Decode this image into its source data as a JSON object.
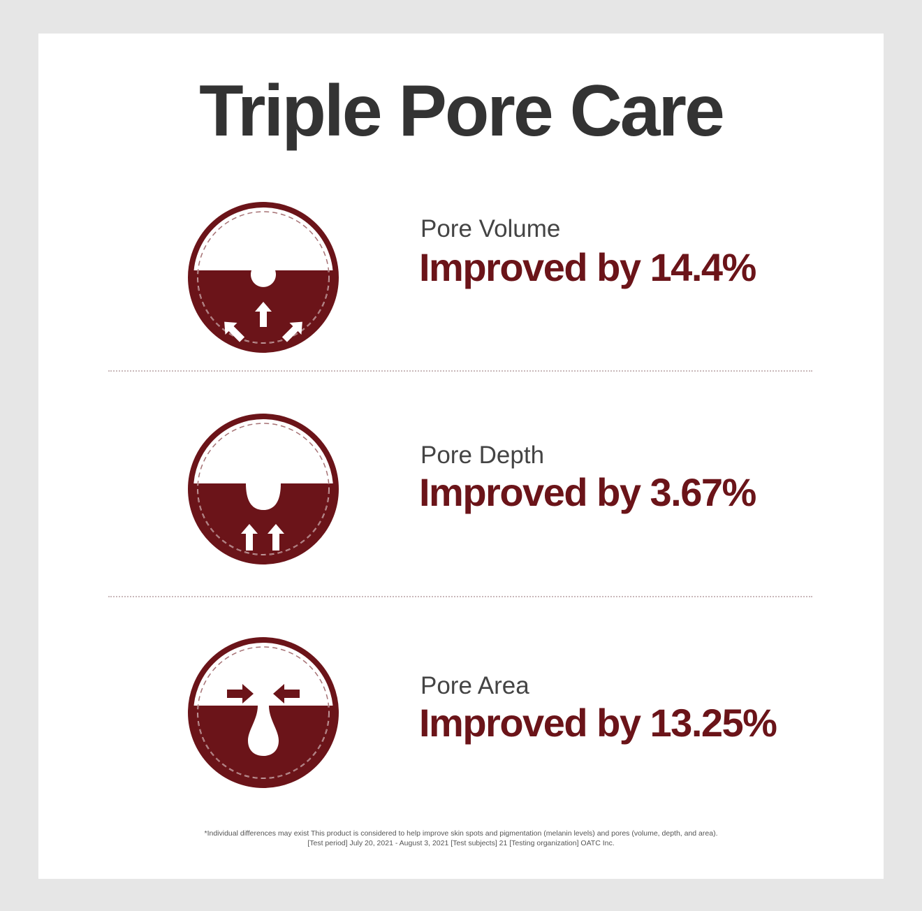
{
  "title": "Triple Pore Care",
  "accent_color": "#6b1419",
  "items": [
    {
      "label": "Pore Volume",
      "value": "Improved by 14.4%",
      "icon": "pore-volume-icon"
    },
    {
      "label": "Pore Depth",
      "value": "Improved by 3.67%",
      "icon": "pore-depth-icon"
    },
    {
      "label": "Pore Area",
      "value": "Improved by 13.25%",
      "icon": "pore-area-icon"
    }
  ],
  "footnote": {
    "line1": "*Individual differences may exist This product is considered to help improve skin spots and pigmentation (melanin levels) and pores (volume, depth, and area).",
    "line2": "[Test period] July 20, 2021 - August 3, 2021 [Test subjects] 21 [Testing organization] OATC Inc."
  }
}
